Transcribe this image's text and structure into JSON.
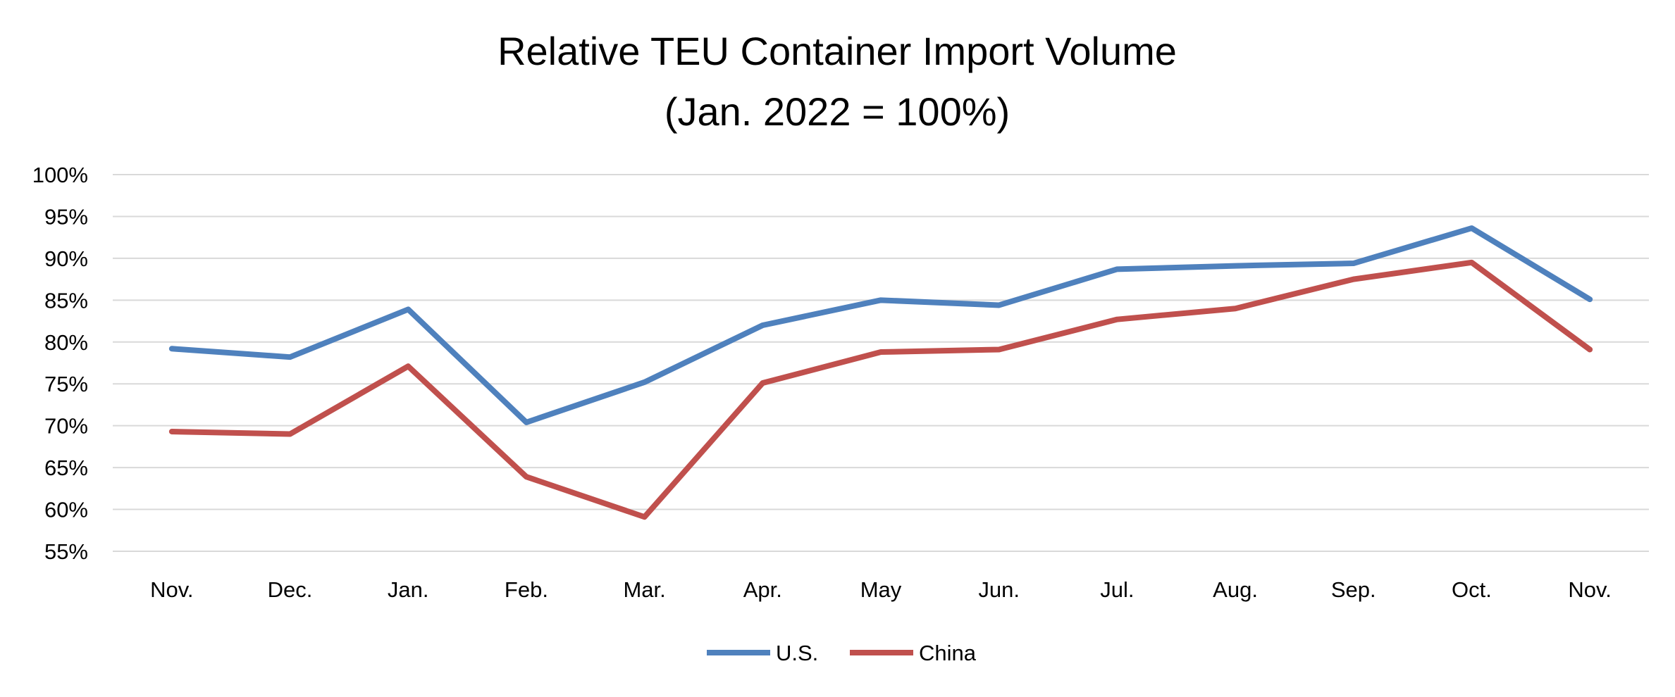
{
  "chart_data": {
    "type": "line",
    "title": "Relative TEU Container Import  Volume",
    "subtitle": "(Jan. 2022 = 100%)",
    "xlabel": "",
    "ylabel": "",
    "categories": [
      "Nov.",
      "Dec.",
      "Jan.",
      "Feb.",
      "Mar.",
      "Apr.",
      "May",
      "Jun.",
      "Jul.",
      "Aug.",
      "Sep.",
      "Oct.",
      "Nov."
    ],
    "ylim": [
      55,
      100
    ],
    "yticks": [
      100,
      95,
      90,
      85,
      80,
      75,
      70,
      65,
      60,
      55
    ],
    "ytick_labels": [
      "100%",
      "95%",
      "90%",
      "85%",
      "80%",
      "75%",
      "70%",
      "65%",
      "60%",
      "55%"
    ],
    "grid": true,
    "legend_position": "bottom",
    "series": [
      {
        "name": "U.S.",
        "color": "#4f81bd",
        "values": [
          79.2,
          78.2,
          83.9,
          70.4,
          75.2,
          82.0,
          85.0,
          84.4,
          88.7,
          89.1,
          89.4,
          93.6,
          85.1
        ]
      },
      {
        "name": "China",
        "color": "#c0504d",
        "values": [
          69.3,
          69.0,
          77.1,
          63.9,
          59.1,
          75.1,
          78.8,
          79.1,
          82.7,
          84.0,
          87.5,
          89.5,
          79.1
        ]
      }
    ]
  }
}
